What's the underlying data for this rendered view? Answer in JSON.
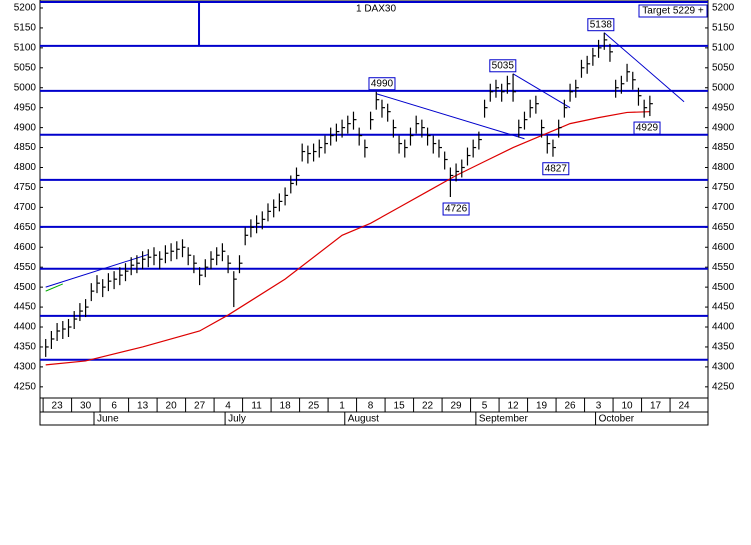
{
  "chart_data": {
    "type": "ohlc",
    "title": "1 DAX30",
    "note": "Target 5229 +",
    "xlim": [
      -3,
      114.2
    ],
    "ylim": [
      4222,
      5220
    ],
    "yticks": [
      4250,
      4300,
      4350,
      4400,
      4450,
      4500,
      4550,
      4600,
      4650,
      4700,
      4750,
      4800,
      4850,
      4900,
      4950,
      5000,
      5050,
      5100,
      5150,
      5200
    ],
    "xticks": [
      {
        "value": 0,
        "label": "23"
      },
      {
        "value": 5,
        "label": "30"
      },
      {
        "value": 10,
        "label": "6"
      },
      {
        "value": 15,
        "label": "13"
      },
      {
        "value": 20,
        "label": "20"
      },
      {
        "value": 25,
        "label": "27"
      },
      {
        "value": 30,
        "label": "4"
      },
      {
        "value": 35,
        "label": "11"
      },
      {
        "value": 40,
        "label": "18"
      },
      {
        "value": 45,
        "label": "25"
      },
      {
        "value": 50,
        "label": "1"
      },
      {
        "value": 55,
        "label": "8"
      },
      {
        "value": 60,
        "label": "15"
      },
      {
        "value": 65,
        "label": "22"
      },
      {
        "value": 70,
        "label": "29"
      },
      {
        "value": 75,
        "label": "5"
      },
      {
        "value": 80,
        "label": "12"
      },
      {
        "value": 85,
        "label": "19"
      },
      {
        "value": 90,
        "label": "26"
      },
      {
        "value": 95,
        "label": "3"
      },
      {
        "value": 100,
        "label": "10"
      },
      {
        "value": 105,
        "label": "17"
      },
      {
        "value": 110,
        "label": "24"
      }
    ],
    "months": [
      {
        "value": 7,
        "label": "June"
      },
      {
        "value": 30,
        "label": "July"
      },
      {
        "value": 51,
        "label": "August"
      },
      {
        "value": 74,
        "label": "September"
      },
      {
        "value": 95,
        "label": "October"
      }
    ],
    "color": "#000000",
    "x": [
      -2,
      -1,
      0,
      1,
      2,
      3,
      4,
      5,
      6,
      7,
      8,
      9,
      10,
      11,
      12,
      13,
      14,
      15,
      16,
      17,
      18,
      19,
      20,
      21,
      22,
      23,
      24,
      25,
      26,
      27,
      28,
      29,
      30,
      31,
      32,
      33,
      34,
      35,
      36,
      37,
      38,
      39,
      40,
      41,
      42,
      43,
      44,
      45,
      46,
      47,
      48,
      49,
      50,
      51,
      52,
      53,
      54,
      55,
      56,
      57,
      58,
      59,
      60,
      61,
      62,
      63,
      64,
      65,
      66,
      67,
      68,
      69,
      70,
      71,
      72,
      73,
      74,
      75,
      76,
      77,
      78,
      79,
      80,
      81,
      82,
      83,
      84,
      85,
      86,
      87,
      88,
      89,
      90,
      91,
      92,
      93,
      94,
      95,
      96,
      97,
      98,
      99,
      100,
      101,
      102,
      103,
      104
    ],
    "high": [
      4370,
      4390,
      4410,
      4415,
      4420,
      4440,
      4460,
      4470,
      4510,
      4530,
      4520,
      4535,
      4540,
      4550,
      4560,
      4575,
      4580,
      4590,
      4595,
      4600,
      4590,
      4605,
      4610,
      4615,
      4620,
      4600,
      4580,
      4550,
      4570,
      4590,
      4600,
      4610,
      4580,
      4540,
      4580,
      4650,
      4670,
      4680,
      4690,
      4710,
      4720,
      4735,
      4750,
      4780,
      4800,
      4860,
      4855,
      4860,
      4870,
      4880,
      4900,
      4910,
      4920,
      4930,
      4940,
      4900,
      4870,
      4940,
      4990,
      4970,
      4960,
      4920,
      4880,
      4870,
      4900,
      4930,
      4920,
      4900,
      4880,
      4870,
      4840,
      4800,
      4810,
      4820,
      4850,
      4870,
      4890,
      4970,
      5010,
      5020,
      5010,
      5030,
      5035,
      4920,
      4940,
      4970,
      4980,
      4920,
      4880,
      4870,
      4920,
      4970,
      5010,
      5020,
      5070,
      5080,
      5100,
      5120,
      5138,
      5110,
      5020,
      5030,
      5060,
      5040,
      5000,
      4970,
      4980
    ],
    "low": [
      4325,
      4345,
      4365,
      4370,
      4375,
      4395,
      4415,
      4425,
      4465,
      4485,
      4475,
      4490,
      4495,
      4505,
      4515,
      4530,
      4535,
      4545,
      4550,
      4555,
      4545,
      4560,
      4565,
      4570,
      4575,
      4555,
      4535,
      4505,
      4525,
      4545,
      4555,
      4565,
      4535,
      4450,
      4535,
      4605,
      4625,
      4635,
      4645,
      4665,
      4675,
      4690,
      4705,
      4735,
      4755,
      4815,
      4810,
      4815,
      4825,
      4835,
      4855,
      4865,
      4875,
      4885,
      4895,
      4855,
      4825,
      4895,
      4945,
      4925,
      4915,
      4875,
      4835,
      4825,
      4855,
      4885,
      4875,
      4855,
      4835,
      4825,
      4795,
      4726,
      4765,
      4775,
      4805,
      4825,
      4845,
      4925,
      4965,
      4975,
      4965,
      4985,
      4965,
      4875,
      4895,
      4925,
      4935,
      4875,
      4835,
      4827,
      4875,
      4925,
      4965,
      4975,
      5025,
      5035,
      5055,
      5075,
      5095,
      5065,
      4975,
      4985,
      5015,
      4995,
      4955,
      4925,
      4929
    ],
    "close": [
      4350,
      4370,
      4390,
      4395,
      4400,
      4420,
      4440,
      4450,
      4490,
      4510,
      4500,
      4515,
      4520,
      4530,
      4540,
      4555,
      4560,
      4570,
      4575,
      4580,
      4570,
      4585,
      4590,
      4595,
      4600,
      4580,
      4560,
      4530,
      4550,
      4570,
      4580,
      4590,
      4560,
      4520,
      4560,
      4630,
      4650,
      4660,
      4670,
      4690,
      4700,
      4715,
      4730,
      4760,
      4780,
      4840,
      4835,
      4840,
      4850,
      4860,
      4880,
      4890,
      4900,
      4910,
      4920,
      4880,
      4850,
      4920,
      4970,
      4950,
      4940,
      4900,
      4860,
      4850,
      4880,
      4910,
      4900,
      4880,
      4860,
      4850,
      4820,
      4780,
      4790,
      4800,
      4830,
      4850,
      4870,
      4950,
      4990,
      5000,
      4990,
      5010,
      4990,
      4900,
      4920,
      4950,
      4960,
      4900,
      4860,
      4850,
      4900,
      4950,
      4990,
      5000,
      5050,
      5060,
      5080,
      5100,
      5120,
      5090,
      5000,
      5010,
      5040,
      5020,
      4980,
      4950,
      4960
    ],
    "average": {
      "color": "#dd0000",
      "x": [
        -2,
        5,
        15,
        25,
        30,
        40,
        50,
        55,
        60,
        65,
        70,
        75,
        80,
        85,
        90,
        95,
        100,
        104
      ],
      "values": [
        4305,
        4315,
        4350,
        4390,
        4430,
        4520,
        4630,
        4660,
        4700,
        4740,
        4780,
        4815,
        4850,
        4880,
        4910,
        4925,
        4938,
        4940
      ]
    },
    "level_color": "#0000cc",
    "levels": [
      5215,
      5105,
      4992,
      4882,
      4769,
      4651,
      4546,
      4428,
      4318
    ],
    "vline": {
      "x": 24.9,
      "values": [
        5105,
        5215
      ]
    },
    "trendlines": [
      {
        "color": "#0000cc",
        "x": [
          -2,
          16
        ],
        "values": [
          4500,
          4582
        ]
      },
      {
        "color": "#00aa00",
        "x": [
          -2,
          1
        ],
        "values": [
          4490,
          4508
        ]
      },
      {
        "color": "#0000cc",
        "x": [
          56,
          82
        ],
        "values": [
          4985,
          4872
        ]
      },
      {
        "color": "#0000cc",
        "x": [
          80,
          90
        ],
        "values": [
          5035,
          4950
        ]
      },
      {
        "color": "#0000cc",
        "x": [
          96,
          110
        ],
        "values": [
          5138,
          4965
        ]
      }
    ],
    "annotations": [
      {
        "label": "4990",
        "value": 4990,
        "x": 57,
        "position": "above"
      },
      {
        "label": "5035",
        "value": 5035,
        "x": 78.2,
        "position": "above"
      },
      {
        "label": "5138",
        "value": 5138,
        "x": 95.4,
        "position": "above"
      },
      {
        "label": "4726",
        "value": 4726,
        "x": 70,
        "position": "below"
      },
      {
        "label": "4827",
        "value": 4827,
        "x": 87.5,
        "position": "below"
      },
      {
        "label": "4929",
        "value": 4929,
        "x": 103.5,
        "position": "below"
      }
    ]
  }
}
